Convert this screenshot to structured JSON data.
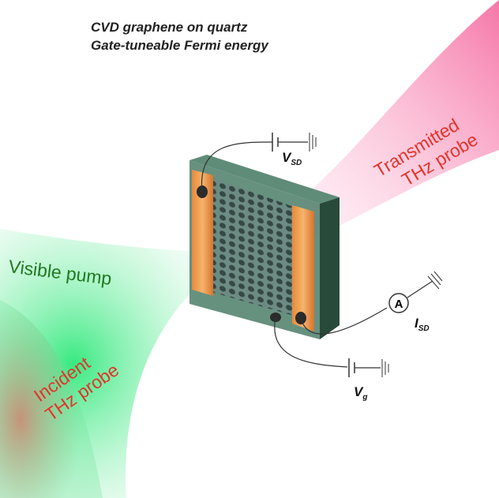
{
  "header": {
    "lines": [
      "CVD graphene on quartz",
      "Gate-tuneable Fermi energy"
    ]
  },
  "beams": {
    "pump": "Visible pump",
    "incident": [
      "Incident",
      "THz probe"
    ],
    "transmitted": [
      "Transmitted",
      "THz probe"
    ]
  },
  "circuit": {
    "vsd": {
      "main": "V",
      "sub": "SD"
    },
    "isd": {
      "main": "I",
      "sub": "SD"
    },
    "vg": {
      "main": "V",
      "sub": "g"
    },
    "ammeter": "A"
  }
}
